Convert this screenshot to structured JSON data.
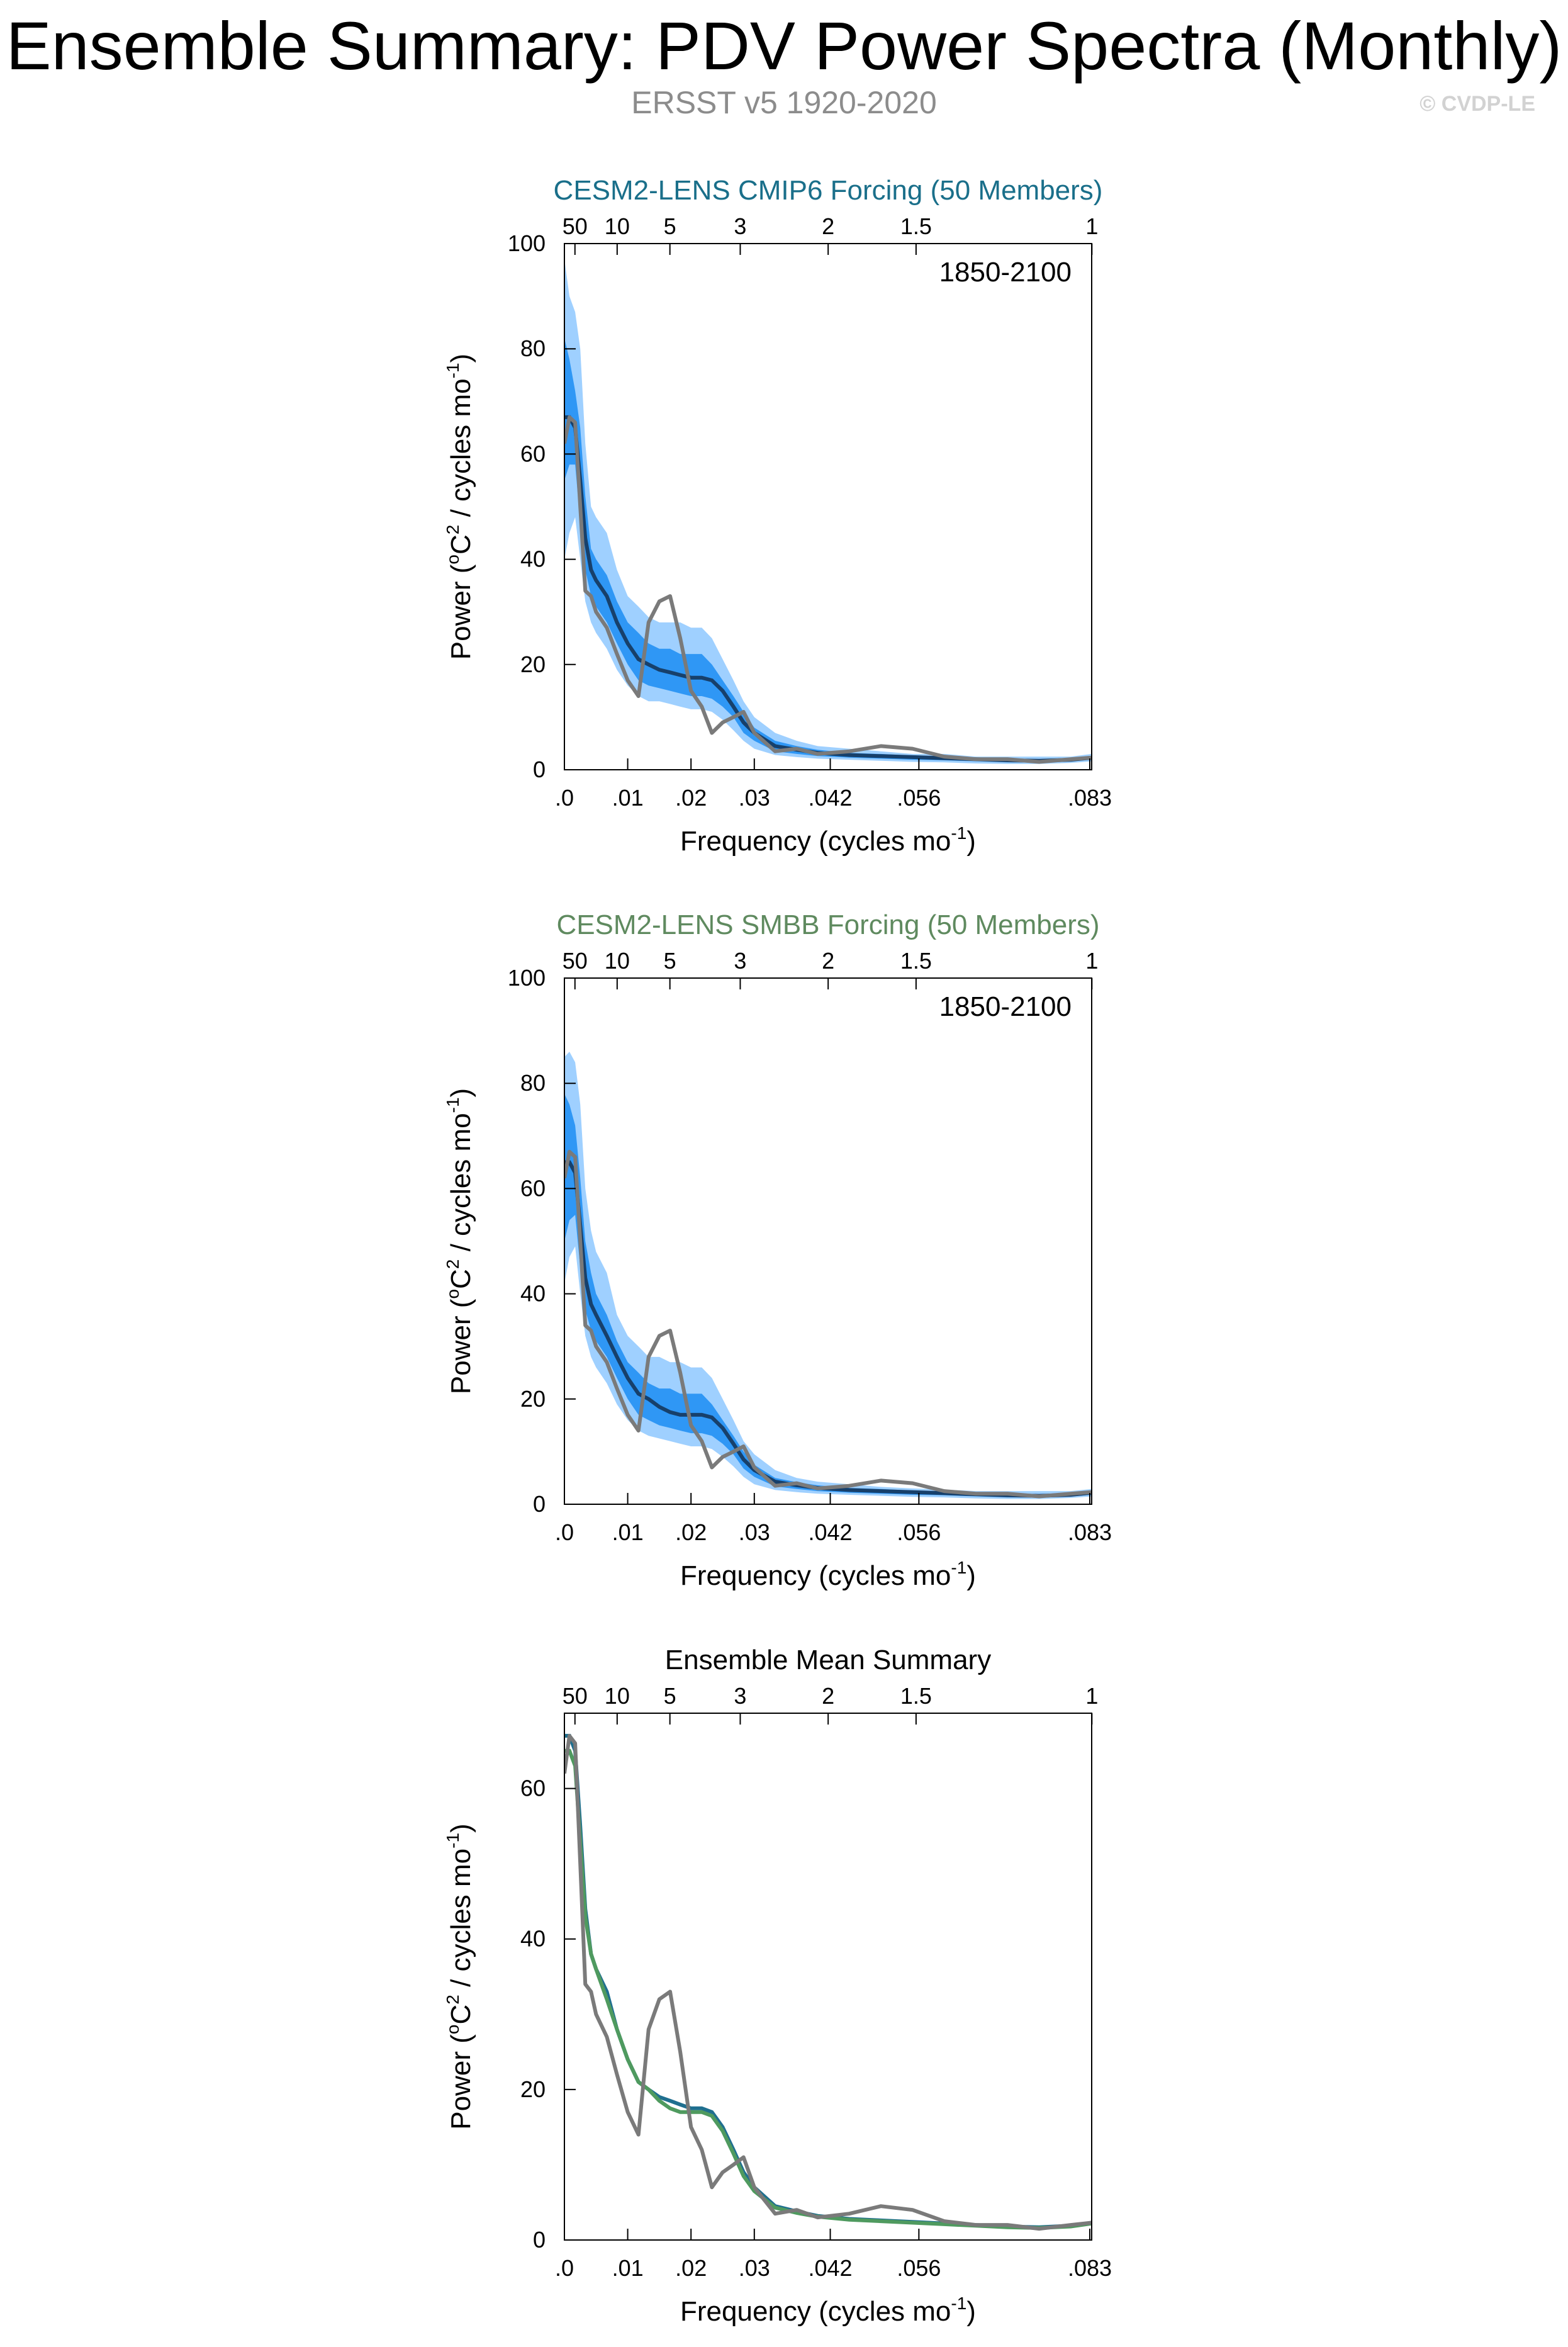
{
  "header": {
    "title": "Ensemble Summary: PDV Power Spectra (Monthly)",
    "subtitle": "ERSST v5 1920-2020",
    "copyright": "© CVDP-LE"
  },
  "colors": {
    "cmip6_title": "#1a6f8a",
    "smbb_title": "#5f8a5f",
    "band_outer": "#9fd0ff",
    "band_inner": "#2f97f5",
    "ens_mean_line": "#17406b",
    "obs_line": "#7a7a7a",
    "summary_cmip6": "#1f6f8f",
    "summary_smbb": "#4f9a5f"
  },
  "axes_common": {
    "xlabel": "Frequency (cycles mo",
    "xlabel_sup": "-1",
    "xlabel_close": ")",
    "ylabel_a": "Power (",
    "ylabel_deg": "o",
    "ylabel_b": "C",
    "ylabel_sq": "2",
    "ylabel_c": " / cycles mo",
    "ylabel_sup": "-1",
    "ylabel_close": ")",
    "bottom_ticks": [
      {
        "v": 0.0,
        "label": ".0"
      },
      {
        "v": 0.01,
        "label": ".01"
      },
      {
        "v": 0.02,
        "label": ".02"
      },
      {
        "v": 0.03,
        "label": ".03"
      },
      {
        "v": 0.042,
        "label": ".042"
      },
      {
        "v": 0.056,
        "label": ".056"
      },
      {
        "v": 0.083,
        "label": ".083"
      }
    ],
    "top_ticks": [
      {
        "v": 0.001667,
        "label": "50"
      },
      {
        "v": 0.008333,
        "label": "10"
      },
      {
        "v": 0.016667,
        "label": "5"
      },
      {
        "v": 0.027778,
        "label": "3"
      },
      {
        "v": 0.041667,
        "label": "2"
      },
      {
        "v": 0.055556,
        "label": "1.5"
      },
      {
        "v": 0.083333,
        "label": "1"
      }
    ],
    "xlim": [
      0,
      0.0833
    ]
  },
  "chart_data": [
    {
      "type": "line",
      "title": "CESM2-LENS CMIP6 Forcing (50 Members)",
      "period": "1850-2100",
      "ylim": [
        0,
        100
      ],
      "yticks": [
        0,
        20,
        40,
        60,
        80,
        100
      ],
      "x": [
        0.0,
        0.0008,
        0.0017,
        0.0025,
        0.0033,
        0.0042,
        0.005,
        0.0067,
        0.0083,
        0.01,
        0.0117,
        0.0133,
        0.015,
        0.0167,
        0.0183,
        0.02,
        0.0217,
        0.0233,
        0.025,
        0.0267,
        0.0283,
        0.03,
        0.0333,
        0.0367,
        0.04,
        0.045,
        0.05,
        0.055,
        0.06,
        0.065,
        0.07,
        0.075,
        0.08,
        0.0833
      ],
      "series": [
        {
          "role": "band_outer_upper",
          "values": [
            97,
            90,
            87,
            80,
            62,
            50,
            48,
            45,
            38,
            33,
            31,
            29,
            28,
            28,
            28,
            27,
            27,
            25,
            21,
            17,
            13,
            10,
            7,
            5.5,
            4.5,
            4,
            3.5,
            3,
            3,
            2.5,
            2.5,
            2.5,
            2.5,
            3
          ]
        },
        {
          "role": "band_inner_upper",
          "values": [
            82,
            78,
            72,
            65,
            52,
            42,
            40,
            37,
            32,
            28,
            26,
            24,
            23,
            23,
            22,
            22,
            22,
            20,
            17,
            14,
            11,
            8,
            5.5,
            4.5,
            3.8,
            3.2,
            3,
            2.7,
            2.5,
            2.2,
            2,
            2,
            2.1,
            2.6
          ]
        },
        {
          "role": "ens_mean",
          "values": [
            67,
            67,
            65,
            55,
            44,
            38,
            36,
            33,
            28,
            24,
            21,
            20,
            19,
            18.5,
            18,
            17.5,
            17.5,
            17,
            15,
            12,
            9,
            7,
            4.5,
            3.8,
            3.2,
            2.8,
            2.6,
            2.4,
            2.2,
            2,
            1.8,
            1.7,
            1.9,
            2.3
          ]
        },
        {
          "role": "band_inner_lower",
          "values": [
            55,
            58,
            58,
            47,
            38,
            33,
            31,
            28,
            24,
            20,
            17,
            16,
            15.5,
            15,
            14.5,
            14,
            14,
            13.5,
            12,
            10,
            7,
            5.5,
            3.5,
            3,
            2.6,
            2.3,
            2.1,
            1.9,
            1.8,
            1.6,
            1.4,
            1.4,
            1.6,
            1.9
          ]
        },
        {
          "role": "band_outer_lower",
          "values": [
            40,
            45,
            48,
            40,
            32,
            28,
            26,
            23,
            19,
            16,
            14,
            13,
            13,
            12.5,
            12,
            11.5,
            11.5,
            11,
            9.5,
            7.5,
            5.5,
            4,
            2.8,
            2.4,
            2.1,
            1.9,
            1.7,
            1.5,
            1.4,
            1.2,
            1.1,
            1.1,
            1.3,
            1.6
          ]
        },
        {
          "role": "obs",
          "values": [
            62,
            67,
            66,
            50,
            34,
            33,
            30,
            27,
            22,
            17,
            14,
            28,
            32,
            33,
            25,
            15,
            12,
            7,
            9,
            10,
            11,
            7,
            3.5,
            4,
            3,
            3.5,
            4.5,
            4,
            2.5,
            2,
            2,
            1.5,
            2,
            2.3
          ]
        }
      ]
    },
    {
      "type": "line",
      "title": "CESM2-LENS SMBB Forcing (50 Members)",
      "period": "1850-2100",
      "ylim": [
        0,
        100
      ],
      "yticks": [
        0,
        20,
        40,
        60,
        80,
        100
      ],
      "x": [
        0.0,
        0.0008,
        0.0017,
        0.0025,
        0.0033,
        0.0042,
        0.005,
        0.0067,
        0.0083,
        0.01,
        0.0117,
        0.0133,
        0.015,
        0.0167,
        0.0183,
        0.02,
        0.0217,
        0.0233,
        0.025,
        0.0267,
        0.0283,
        0.03,
        0.0333,
        0.0367,
        0.04,
        0.045,
        0.05,
        0.055,
        0.06,
        0.065,
        0.07,
        0.075,
        0.08,
        0.0833
      ],
      "series": [
        {
          "role": "band_outer_upper",
          "values": [
            85,
            86,
            84,
            76,
            60,
            52,
            48,
            44,
            36,
            32,
            30,
            28,
            28,
            27,
            27,
            26,
            26,
            24,
            20,
            16,
            12,
            9.5,
            6.5,
            5,
            4.3,
            3.8,
            3.3,
            3,
            2.8,
            2.5,
            2.5,
            2.5,
            2.5,
            2.9
          ]
        },
        {
          "role": "band_inner_upper",
          "values": [
            78,
            76,
            72,
            62,
            50,
            44,
            40,
            36,
            31,
            27,
            25,
            23,
            22,
            22,
            21,
            21,
            21,
            19,
            16,
            13,
            10,
            7.5,
            5,
            4.2,
            3.6,
            3.1,
            2.9,
            2.6,
            2.4,
            2.1,
            1.9,
            1.9,
            2,
            2.5
          ]
        },
        {
          "role": "ens_mean",
          "values": [
            65,
            65,
            63,
            53,
            43,
            38,
            36,
            32,
            28,
            24,
            21,
            20,
            18.5,
            17.5,
            17,
            17,
            17,
            16.5,
            14.5,
            11.5,
            8.5,
            6.5,
            4.3,
            3.6,
            3.1,
            2.7,
            2.5,
            2.3,
            2.1,
            1.9,
            1.7,
            1.6,
            1.8,
            2.2
          ]
        },
        {
          "role": "band_inner_lower",
          "values": [
            50,
            54,
            55,
            45,
            37,
            33,
            31,
            28,
            24,
            20,
            17,
            16,
            15,
            14.5,
            14,
            13.5,
            13.5,
            13,
            11.5,
            9.5,
            6.8,
            5.2,
            3.4,
            2.9,
            2.5,
            2.2,
            2,
            1.8,
            1.7,
            1.5,
            1.3,
            1.3,
            1.5,
            1.8
          ]
        },
        {
          "role": "band_outer_lower",
          "values": [
            42,
            47,
            49,
            40,
            32,
            28,
            26,
            23,
            19,
            16,
            14,
            13,
            12.5,
            12,
            11.5,
            11,
            11,
            10.5,
            9,
            7.2,
            5.2,
            3.8,
            2.7,
            2.3,
            2,
            1.8,
            1.6,
            1.4,
            1.3,
            1.1,
            1,
            1,
            1.2,
            1.5
          ]
        },
        {
          "role": "obs",
          "values": [
            62,
            67,
            66,
            50,
            34,
            33,
            30,
            27,
            22,
            17,
            14,
            28,
            32,
            33,
            25,
            15,
            12,
            7,
            9,
            10,
            11,
            7,
            3.5,
            4,
            3,
            3.5,
            4.5,
            4,
            2.5,
            2,
            2,
            1.5,
            2,
            2.3
          ]
        }
      ]
    },
    {
      "type": "line",
      "title": "Ensemble Mean Summary",
      "ylim": [
        0,
        70
      ],
      "yticks": [
        0,
        20,
        40,
        60
      ],
      "x": [
        0.0,
        0.0008,
        0.0017,
        0.0025,
        0.0033,
        0.0042,
        0.005,
        0.0067,
        0.0083,
        0.01,
        0.0117,
        0.0133,
        0.015,
        0.0167,
        0.0183,
        0.02,
        0.0217,
        0.0233,
        0.025,
        0.0267,
        0.0283,
        0.03,
        0.0333,
        0.0367,
        0.04,
        0.045,
        0.05,
        0.055,
        0.06,
        0.065,
        0.07,
        0.075,
        0.08,
        0.0833
      ],
      "series": [
        {
          "role": "summary_cmip6",
          "values": [
            67,
            67,
            65,
            55,
            44,
            38,
            36,
            33,
            28,
            24,
            21,
            20,
            19,
            18.5,
            18,
            17.5,
            17.5,
            17,
            15,
            12,
            9,
            7,
            4.5,
            3.8,
            3.2,
            2.8,
            2.6,
            2.4,
            2.2,
            2,
            1.8,
            1.7,
            1.9,
            2.3
          ]
        },
        {
          "role": "summary_smbb",
          "values": [
            65,
            65,
            63,
            53,
            43,
            38,
            36,
            32,
            28,
            24,
            21,
            20,
            18.5,
            17.5,
            17,
            17,
            17,
            16.5,
            14.5,
            11.5,
            8.5,
            6.5,
            4.3,
            3.6,
            3.1,
            2.7,
            2.5,
            2.3,
            2.1,
            1.9,
            1.7,
            1.6,
            1.8,
            2.2
          ]
        },
        {
          "role": "obs",
          "values": [
            62,
            67,
            66,
            50,
            34,
            33,
            30,
            27,
            22,
            17,
            14,
            28,
            32,
            33,
            25,
            15,
            12,
            7,
            9,
            10,
            11,
            7,
            3.5,
            4,
            3,
            3.5,
            4.5,
            4,
            2.5,
            2,
            2,
            1.5,
            2,
            2.3
          ]
        }
      ]
    }
  ]
}
